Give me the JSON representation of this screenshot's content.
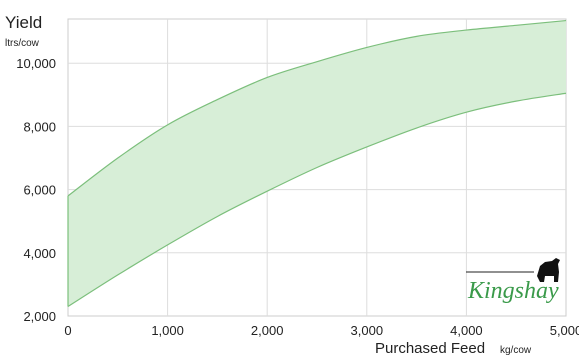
{
  "chart_data": {
    "type": "area",
    "ylabel": "Yield",
    "ylabel_unit": "ltrs/cow",
    "xlabel": "Purchased Feed",
    "xlabel_unit": "kg/cow",
    "xlim": [
      0,
      5000
    ],
    "ylim": [
      2000,
      11400
    ],
    "x_ticks": [
      0,
      1000,
      2000,
      3000,
      4000,
      5000
    ],
    "x_tick_labels": [
      "0",
      "1,000",
      "2,000",
      "3,000",
      "4,000",
      "5,000"
    ],
    "y_ticks": [
      2000,
      4000,
      6000,
      8000,
      10000
    ],
    "y_tick_labels": [
      "2,000",
      "4,000",
      "6,000",
      "8,000",
      "10,000"
    ],
    "grid": true,
    "colors": {
      "band_fill": "#d7eed7",
      "band_stroke": "#7cbf7c",
      "grid": "#dddddd"
    },
    "series": [
      {
        "x": [
          0,
          500,
          1000,
          1500,
          2000,
          2500,
          3000,
          3500,
          4000,
          4500,
          5000
        ],
        "values": [
          5800,
          7000,
          8050,
          8850,
          9550,
          10050,
          10500,
          10850,
          11050,
          11200,
          11350
        ]
      },
      {
        "x": [
          0,
          500,
          1000,
          1500,
          2000,
          2500,
          3000,
          3500,
          4000,
          4500,
          5000
        ],
        "values": [
          2300,
          3300,
          4250,
          5150,
          5950,
          6700,
          7350,
          7950,
          8450,
          8800,
          9050
        ]
      }
    ]
  },
  "logo": {
    "text": "Kingshay",
    "icon": "cow-silhouette-icon",
    "color": "#3a9a4a"
  }
}
